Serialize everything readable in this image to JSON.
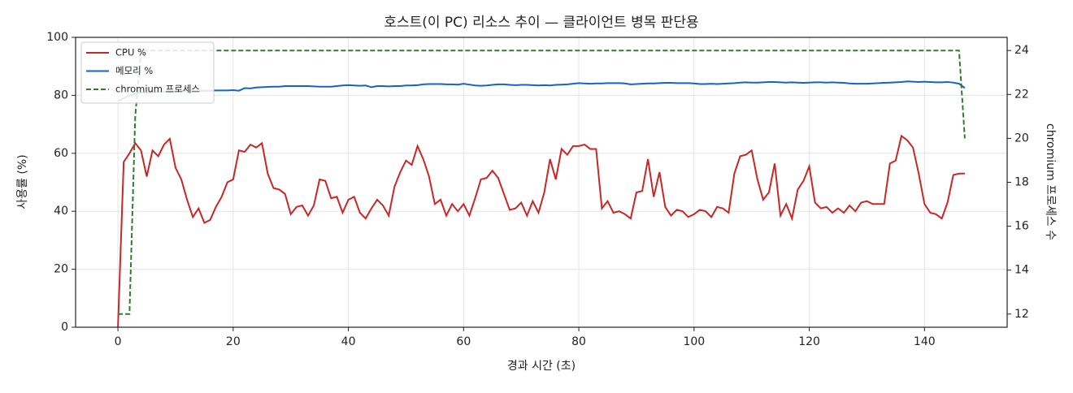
{
  "chart_data": {
    "type": "line",
    "title": "호스트(이 PC) 리소스 추이 — 클라이언트 병목 판단용",
    "x_label": "경과 시간 (초)",
    "y_label": "사용률 (%)",
    "y2_label": "chromium 프로세스 수",
    "x": [
      0,
      1,
      2,
      3,
      4,
      5,
      6,
      7,
      8,
      9,
      10,
      11,
      12,
      13,
      14,
      15,
      16,
      17,
      18,
      19,
      20,
      21,
      22,
      23,
      24,
      25,
      26,
      27,
      28,
      29,
      30,
      31,
      32,
      33,
      34,
      35,
      36,
      37,
      38,
      39,
      40,
      41,
      42,
      43,
      44,
      45,
      46,
      47,
      48,
      49,
      50,
      51,
      52,
      53,
      54,
      55,
      56,
      57,
      58,
      59,
      60,
      61,
      62,
      63,
      64,
      65,
      66,
      67,
      68,
      69,
      70,
      71,
      72,
      73,
      74,
      75,
      76,
      77,
      78,
      79,
      80,
      81,
      82,
      83,
      84,
      85,
      86,
      87,
      88,
      89,
      90,
      91,
      92,
      93,
      94,
      95,
      96,
      97,
      98,
      99,
      100,
      101,
      102,
      103,
      104,
      105,
      106,
      107,
      108,
      109,
      110,
      111,
      112,
      113,
      114,
      115,
      116,
      117,
      118,
      119,
      120,
      121,
      122,
      123,
      124,
      125,
      126,
      127,
      128,
      129,
      130,
      131,
      132,
      133,
      134,
      135,
      136,
      137,
      138,
      139,
      140,
      141,
      142,
      143,
      144,
      145,
      146,
      147
    ],
    "series": [
      {
        "name": "CPU %",
        "color": "#c62828",
        "dash": false,
        "values": [
          0,
          57,
          60,
          63.5,
          61,
          52,
          61,
          59,
          63,
          65,
          55,
          51,
          44,
          38,
          41,
          36,
          37,
          41.5,
          45,
          50,
          51,
          61,
          60.5,
          63,
          62,
          63.5,
          53,
          48,
          47.5,
          46,
          39,
          41.5,
          42,
          38.5,
          42,
          51,
          50.5,
          44.5,
          45,
          39.5,
          44,
          45,
          39.5,
          37.5,
          41,
          44,
          42,
          38.5,
          48.5,
          53.5,
          57.5,
          56,
          62.5,
          58,
          52,
          42.5,
          44,
          38.5,
          42.5,
          40,
          42.5,
          38.5,
          44.5,
          51,
          51.5,
          54,
          51.5,
          46,
          40.5,
          41,
          43,
          38.5,
          43.5,
          39.5,
          46.5,
          58,
          51,
          61.5,
          59.5,
          62.5,
          62.5,
          63,
          61.5,
          61.5,
          41,
          43.5,
          39.5,
          40,
          39,
          37.5,
          46.5,
          47,
          58,
          45,
          53.5,
          41.5,
          38.5,
          40.5,
          40,
          38,
          39,
          40.5,
          40,
          38,
          41.5,
          41,
          39.5,
          53,
          59,
          59.5,
          61,
          51,
          44,
          46.5,
          56.5,
          38.5,
          42.5,
          37.5,
          47.5,
          50.5,
          55.5,
          43,
          41,
          41.5,
          39.5,
          41,
          39.5,
          42,
          40,
          43,
          43.5,
          42.5,
          42.5,
          42.5,
          56.5,
          57.5,
          66,
          64.5,
          62,
          53,
          42.5,
          39.5,
          39,
          37.5,
          43,
          52.5,
          53,
          53
        ]
      },
      {
        "name": "메모리 %",
        "color": "#1565c0",
        "dash": false,
        "values": [
          78,
          79,
          80,
          80.5,
          81,
          81,
          81,
          81.2,
          81.3,
          81.3,
          81.4,
          81.4,
          81.5,
          81.5,
          81.5,
          81.6,
          81.6,
          81.7,
          81.7,
          81.7,
          81.8,
          81.6,
          82.5,
          82.4,
          82.7,
          82.8,
          82.9,
          83,
          83,
          83.2,
          83.2,
          83.2,
          83.2,
          83.2,
          83.1,
          83,
          83,
          83,
          83.2,
          83.4,
          83.5,
          83.4,
          83.3,
          83.4,
          82.8,
          83.2,
          83.2,
          83.1,
          83.2,
          83.2,
          83.4,
          83.4,
          83.5,
          83.8,
          83.9,
          83.9,
          83.9,
          83.8,
          83.8,
          83.7,
          84,
          83.7,
          83.4,
          83.3,
          83.4,
          83.6,
          83.8,
          83.8,
          83.6,
          83.5,
          83.6,
          83.6,
          83.5,
          83.4,
          83.5,
          83.4,
          83.6,
          83.7,
          83.8,
          84,
          84.2,
          84.1,
          84,
          84.1,
          84.1,
          84.2,
          84.2,
          84.2,
          84.1,
          83.8,
          83.9,
          84,
          84.1,
          84.1,
          84.2,
          84.3,
          84.3,
          84.2,
          84.2,
          84.2,
          84.1,
          83.9,
          83.9,
          84,
          83.9,
          84,
          84.1,
          84.2,
          84.4,
          84.5,
          84.4,
          84.4,
          84.5,
          84.6,
          84.6,
          84.5,
          84.4,
          84.5,
          84.4,
          84.3,
          84.4,
          84.5,
          84.5,
          84.4,
          84.5,
          84.4,
          84.3,
          84.1,
          84,
          84,
          84,
          84.1,
          84.2,
          84.3,
          84.4,
          84.5,
          84.6,
          84.8,
          84.7,
          84.6,
          84.7,
          84.6,
          84.5,
          84.5,
          84.6,
          84.4,
          84,
          82.5
        ]
      },
      {
        "name": "chromium 프로세스",
        "color": "#2e7d32",
        "dash": true,
        "axis": "y2",
        "values": [
          12,
          12,
          12,
          21,
          24,
          24,
          24,
          24,
          24,
          24,
          24,
          24,
          24,
          24,
          24,
          24,
          24,
          24,
          24,
          24,
          24,
          24,
          24,
          24,
          24,
          24,
          24,
          24,
          24,
          24,
          24,
          24,
          24,
          24,
          24,
          24,
          24,
          24,
          24,
          24,
          24,
          24,
          24,
          24,
          24,
          24,
          24,
          24,
          24,
          24,
          24,
          24,
          24,
          24,
          24,
          24,
          24,
          24,
          24,
          24,
          24,
          24,
          24,
          24,
          24,
          24,
          24,
          24,
          24,
          24,
          24,
          24,
          24,
          24,
          24,
          24,
          24,
          24,
          24,
          24,
          24,
          24,
          24,
          24,
          24,
          24,
          24,
          24,
          24,
          24,
          24,
          24,
          24,
          24,
          24,
          24,
          24,
          24,
          24,
          24,
          24,
          24,
          24,
          24,
          24,
          24,
          24,
          24,
          24,
          24,
          24,
          24,
          24,
          24,
          24,
          24,
          24,
          24,
          24,
          24,
          24,
          24,
          24,
          24,
          24,
          24,
          24,
          24,
          24,
          24,
          24,
          24,
          24,
          24,
          24,
          24,
          24,
          24,
          24,
          24,
          24,
          24,
          24,
          24,
          24,
          24,
          24,
          20
        ]
      }
    ],
    "xlim": [
      -7.35,
      154.35
    ],
    "xticks": [
      0,
      20,
      40,
      60,
      80,
      100,
      120,
      140
    ],
    "ylim": [
      0,
      100
    ],
    "yticks": [
      0,
      20,
      40,
      60,
      80,
      100
    ],
    "y2lim": [
      11.4,
      24.6
    ],
    "y2ticks": [
      12,
      14,
      16,
      18,
      20,
      22,
      24
    ],
    "grid": true,
    "legend": "upper left"
  }
}
